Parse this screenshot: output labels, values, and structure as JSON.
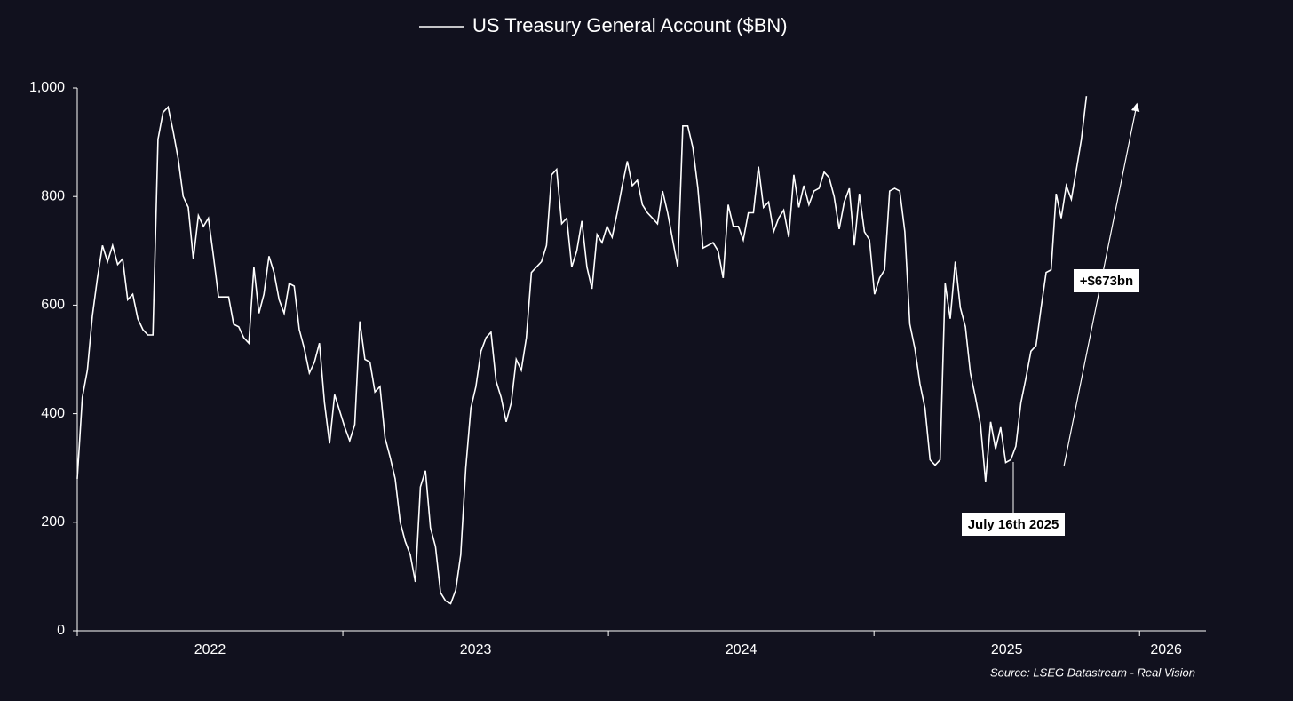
{
  "chart_data": {
    "type": "line",
    "title": "US Treasury General Account ($BN)",
    "source": "Source: LSEG Datastream - Real Vision",
    "annotations": [
      "July 16th 2025",
      "+$673bn"
    ],
    "xlim": [
      2021.5,
      2025.75
    ],
    "xticks": [
      2022,
      2023,
      2024,
      2025,
      {
        "value": 2025.6,
        "label": "2026"
      }
    ],
    "ylim": [
      0,
      1000
    ],
    "yticks": [
      0,
      200,
      400,
      600,
      800,
      {
        "value": 1000,
        "label": "1,000"
      }
    ],
    "series": [
      {
        "name": "US Treasury General Account ($BN)",
        "color": "#ffffff",
        "x": [
          2021.5,
          2021.519,
          2021.538,
          2021.557,
          2021.576,
          2021.595,
          2021.614,
          2021.633,
          2021.652,
          2021.671,
          2021.69,
          2021.709,
          2021.728,
          2021.747,
          2021.766,
          2021.785,
          2021.804,
          2021.823,
          2021.842,
          2021.861,
          2021.88,
          2021.899,
          2021.918,
          2021.937,
          2021.956,
          2021.975,
          2021.994,
          2022.013,
          2022.032,
          2022.051,
          2022.07,
          2022.089,
          2022.108,
          2022.127,
          2022.146,
          2022.165,
          2022.184,
          2022.203,
          2022.222,
          2022.241,
          2022.26,
          2022.279,
          2022.298,
          2022.317,
          2022.336,
          2022.355,
          2022.374,
          2022.393,
          2022.412,
          2022.431,
          2022.45,
          2022.469,
          2022.488,
          2022.507,
          2022.526,
          2022.545,
          2022.564,
          2022.583,
          2022.602,
          2022.621,
          2022.64,
          2022.659,
          2022.678,
          2022.697,
          2022.716,
          2022.735,
          2022.754,
          2022.773,
          2022.792,
          2022.811,
          2022.83,
          2022.849,
          2022.868,
          2022.887,
          2022.906,
          2022.925,
          2022.944,
          2022.963,
          2022.982,
          2023.001,
          2023.02,
          2023.039,
          2023.058,
          2023.077,
          2023.096,
          2023.115,
          2023.134,
          2023.153,
          2023.172,
          2023.191,
          2023.21,
          2023.229,
          2023.248,
          2023.267,
          2023.286,
          2023.305,
          2023.324,
          2023.343,
          2023.362,
          2023.381,
          2023.4,
          2023.419,
          2023.438,
          2023.457,
          2023.476,
          2023.495,
          2023.514,
          2023.533,
          2023.552,
          2023.571,
          2023.59,
          2023.609,
          2023.628,
          2023.647,
          2023.666,
          2023.685,
          2023.704,
          2023.723,
          2023.742,
          2023.761,
          2023.78,
          2023.799,
          2023.818,
          2023.837,
          2023.856,
          2023.875,
          2023.894,
          2023.913,
          2023.932,
          2023.951,
          2023.97,
          2023.989,
          2024.008,
          2024.027,
          2024.046,
          2024.065,
          2024.084,
          2024.103,
          2024.122,
          2024.141,
          2024.16,
          2024.179,
          2024.198,
          2024.217,
          2024.236,
          2024.255,
          2024.274,
          2024.293,
          2024.312,
          2024.331,
          2024.35,
          2024.369,
          2024.388,
          2024.407,
          2024.426,
          2024.445,
          2024.464,
          2024.483,
          2024.502,
          2024.521,
          2024.54,
          2024.559,
          2024.578,
          2024.597,
          2024.616,
          2024.635,
          2024.654,
          2024.673,
          2024.692,
          2024.711,
          2024.73,
          2024.749,
          2024.768,
          2024.787,
          2024.806,
          2024.825,
          2024.844,
          2024.863,
          2024.882,
          2024.901,
          2024.92,
          2024.939,
          2024.958,
          2024.977,
          2024.996,
          2025.015,
          2025.034,
          2025.053,
          2025.072,
          2025.091,
          2025.11,
          2025.129,
          2025.148,
          2025.167,
          2025.186,
          2025.205,
          2025.224,
          2025.243,
          2025.262,
          2025.281,
          2025.3
        ],
        "values": [
          280,
          430,
          480,
          580,
          650,
          710,
          680,
          710,
          675,
          685,
          610,
          620,
          575,
          555,
          545,
          545,
          905,
          955,
          965,
          920,
          870,
          800,
          780,
          685,
          765,
          745,
          760,
          690,
          615,
          615,
          615,
          565,
          560,
          540,
          530,
          670,
          585,
          620,
          690,
          660,
          610,
          585,
          640,
          635,
          555,
          520,
          475,
          495,
          530,
          420,
          345,
          435,
          405,
          375,
          350,
          380,
          570,
          500,
          495,
          440,
          450,
          355,
          320,
          280,
          200,
          165,
          140,
          90,
          265,
          295,
          190,
          155,
          70,
          55,
          50,
          75,
          140,
          300,
          410,
          450,
          515,
          540,
          550,
          460,
          430,
          385,
          420,
          500,
          480,
          540,
          660,
          670,
          680,
          710,
          840,
          850,
          750,
          760,
          670,
          700,
          755,
          670,
          630,
          730,
          715,
          745,
          725,
          770,
          820,
          865,
          820,
          830,
          785,
          770,
          760,
          750,
          810,
          770,
          720,
          670,
          930,
          930,
          890,
          815,
          705,
          710,
          715,
          700,
          650,
          785,
          745,
          745,
          720,
          770,
          770,
          855,
          780,
          790,
          735,
          760,
          775,
          725,
          840,
          780,
          820,
          785,
          810,
          815,
          845,
          835,
          800,
          740,
          790,
          815,
          710,
          805,
          735,
          720,
          620,
          650,
          665,
          810,
          815,
          810,
          735,
          565,
          520,
          455,
          410,
          315,
          305,
          315,
          640,
          575,
          680,
          595,
          560,
          475,
          430,
          380,
          275,
          385,
          335,
          375,
          310,
          315,
          340,
          420,
          465,
          515,
          525,
          595,
          660,
          665,
          805,
          760,
          820,
          795,
          850,
          905,
          985
        ]
      }
    ]
  }
}
